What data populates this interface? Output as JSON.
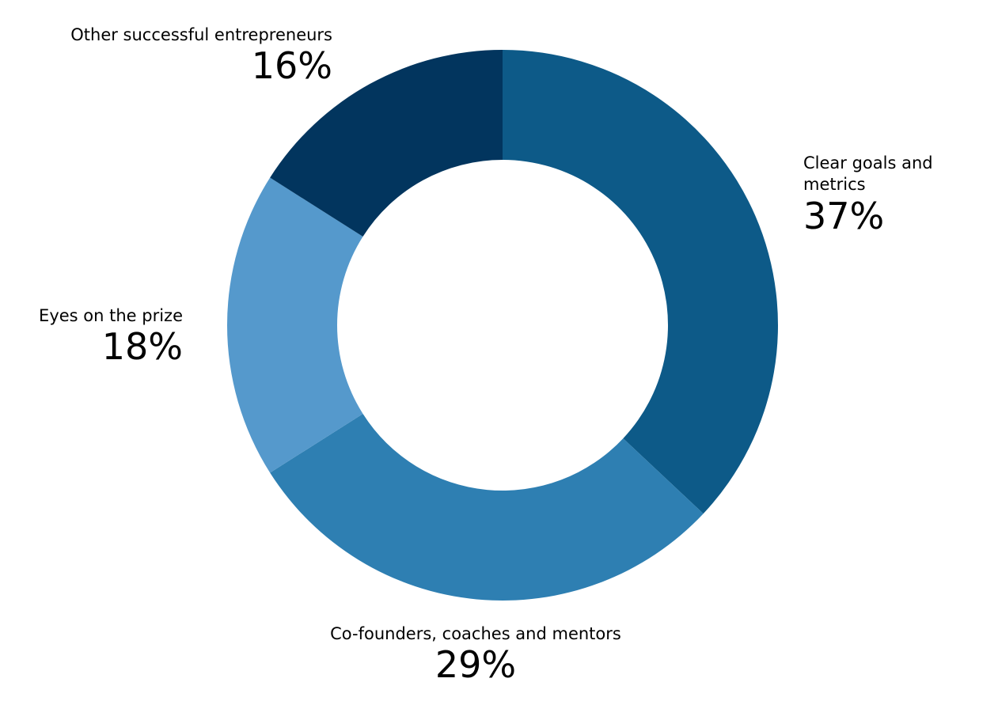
{
  "chart_data": {
    "type": "donut",
    "categories": [
      "Clear goals and metrics",
      "Co-founders, coaches and mentors",
      "Eyes on the prize",
      "Other successful entrepreneurs"
    ],
    "values": [
      37,
      29,
      18,
      16
    ],
    "value_labels": [
      "37%",
      "29%",
      "18%",
      "16%"
    ],
    "colors": [
      "#0d5a88",
      "#2e7fb2",
      "#5599cc",
      "#02355e"
    ]
  }
}
